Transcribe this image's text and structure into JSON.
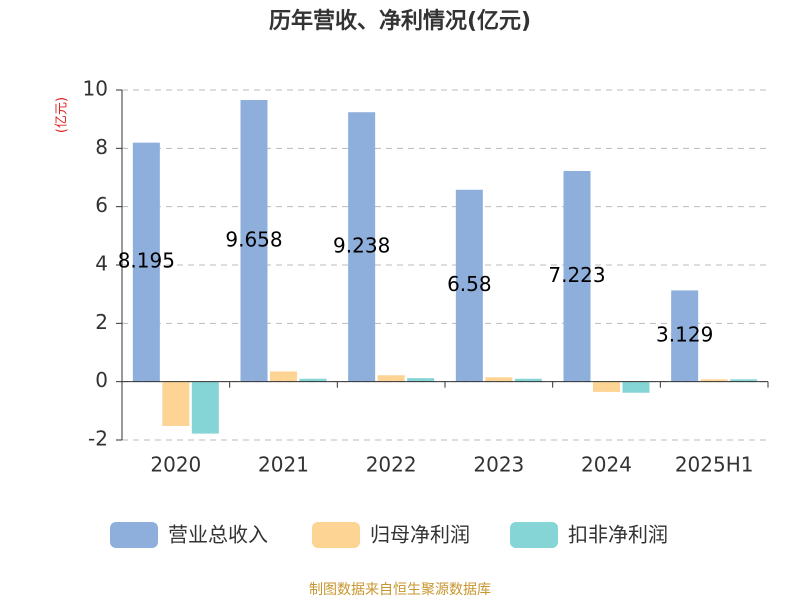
{
  "chart_data": {
    "type": "bar",
    "title": "历年营收、净利情况(亿元)",
    "y_label": "(亿元)",
    "categories": [
      "2020",
      "2021",
      "2022",
      "2023",
      "2024",
      "2025H1"
    ],
    "series": [
      {
        "name": "营业总收入",
        "color": "#8eaedb",
        "values": [
          8.195,
          9.658,
          9.238,
          6.58,
          7.223,
          3.129
        ],
        "data_labels": true
      },
      {
        "name": "归母净利润",
        "color": "#fdd493",
        "values": [
          -1.52,
          0.35,
          0.22,
          0.15,
          -0.35,
          0.08
        ],
        "data_labels": false
      },
      {
        "name": "扣非净利润",
        "color": "#85d4d6",
        "values": [
          -1.78,
          0.1,
          0.12,
          0.1,
          -0.38,
          0.08
        ],
        "data_labels": false
      }
    ],
    "ylim": [
      -2,
      10
    ],
    "yticks": [
      -2,
      0,
      2,
      4,
      6,
      8,
      10
    ],
    "grid": true,
    "source": "制图数据来自恒生聚源数据库"
  }
}
